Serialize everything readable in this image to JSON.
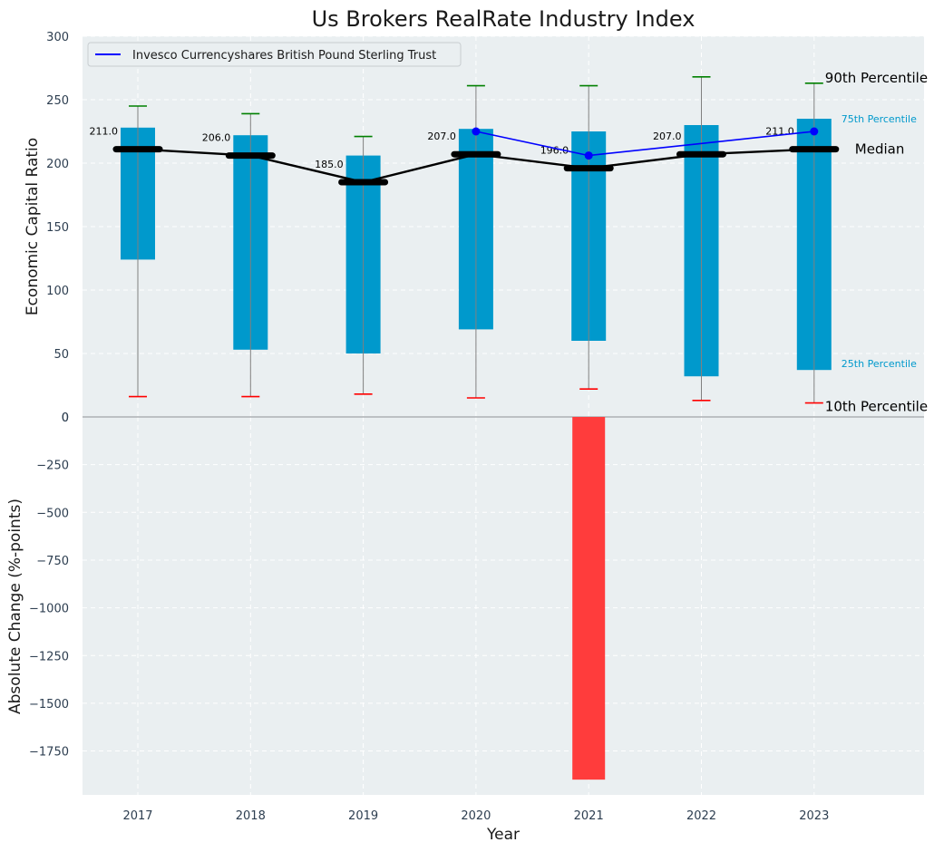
{
  "chart_data": [
    {
      "type": "box-percentile",
      "title": "Us Brokers RealRate Industry Index",
      "ylabel": "Economic Capital Ratio",
      "ylim": [
        0,
        300
      ],
      "yticks": [
        "0",
        "50",
        "100",
        "150",
        "200",
        "250",
        "300"
      ],
      "categories": [
        "2017",
        "2018",
        "2019",
        "2020",
        "2021",
        "2022",
        "2023"
      ],
      "p10": [
        16,
        16,
        18,
        15,
        22,
        13,
        11
      ],
      "p25": [
        124,
        53,
        50,
        69,
        60,
        32,
        37
      ],
      "median": [
        211,
        206,
        185,
        207,
        196,
        207,
        211
      ],
      "p75": [
        228,
        222,
        206,
        227,
        225,
        230,
        235
      ],
      "p90": [
        245,
        239,
        221,
        261,
        261,
        268,
        263
      ],
      "median_labels": [
        "211.0",
        "206.0",
        "185.0",
        "207.0",
        "196.0",
        "207.0",
        "211.0"
      ],
      "series": [
        {
          "name": "Invesco Currencyshares British Pound Sterling Trust",
          "x": [
            "2020",
            "2021",
            "2023"
          ],
          "values": [
            225,
            206,
            225
          ]
        }
      ],
      "annotations": {
        "p90": "90th Percentile",
        "p75": "75th Percentile",
        "median": "Median",
        "p25": "25th Percentile",
        "p10": "10th Percentile"
      },
      "grid": true,
      "legend": "top-left"
    },
    {
      "type": "bar",
      "ylabel": "Absolute Change (%-points)",
      "xlabel": "Year",
      "categories": [
        "2017",
        "2018",
        "2019",
        "2020",
        "2021",
        "2022",
        "2023"
      ],
      "values": [
        0,
        0,
        0,
        0,
        -1900,
        0,
        0
      ],
      "ylim": [
        -1980,
        0
      ],
      "yticks": [
        "0",
        "−250",
        "−500",
        "−750",
        "−1000",
        "−1250",
        "−1500",
        "−1750"
      ],
      "grid": true
    }
  ],
  "colors": {
    "box": "#0099cc",
    "median": "#000000",
    "series": "#0000ff",
    "p90_cap": "#008000",
    "p10_cap": "#ff0000",
    "negative_bar": "#ff3c3c",
    "plot_bg": "#eaeff1"
  }
}
